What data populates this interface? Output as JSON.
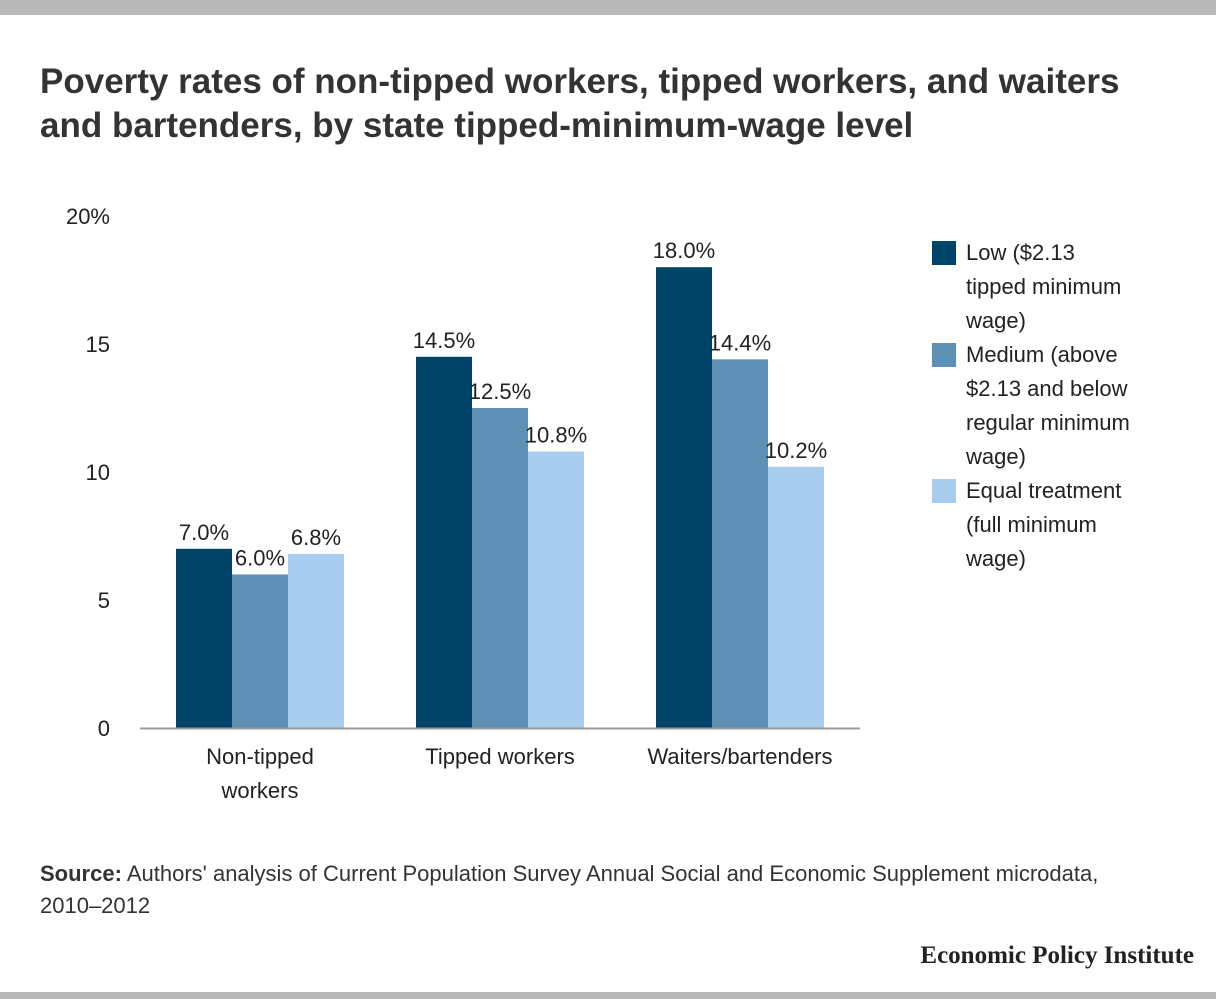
{
  "title": "Poverty rates of non-tipped workers, tipped workers, and waiters and bartenders, by state tipped-minimum-wage level",
  "source_label": "Source:",
  "source_text": "Authors' analysis of Current Population Survey Annual Social and Economic Supplement microdata, 2010–2012",
  "brand": "Economic Policy Institute",
  "colors": {
    "low": "#00446a",
    "medium": "#5e8fb4",
    "equal": "#a9cdee",
    "axis": "#999999"
  },
  "chart_data": {
    "type": "bar",
    "title": "Poverty rates of non-tipped workers, tipped workers, and waiters and bartenders, by state tipped-minimum-wage level",
    "categories": [
      "Non-tipped workers",
      "Tipped workers",
      "Waiters/bartenders"
    ],
    "series": [
      {
        "name": "Low ($2.13 tipped minimum wage)",
        "values": [
          7.0,
          14.5,
          18.0
        ],
        "labels": [
          "7.0%",
          "14.5%",
          "18.0%"
        ]
      },
      {
        "name": "Medium (above $2.13 and below regular minimum wage)",
        "values": [
          6.0,
          12.5,
          14.4
        ],
        "labels": [
          "6.0%",
          "12.5%",
          "14.4%"
        ]
      },
      {
        "name": "Equal treatment (full minimum wage)",
        "values": [
          6.8,
          10.8,
          10.2
        ],
        "labels": [
          "6.8%",
          "10.8%",
          "10.2%"
        ]
      }
    ],
    "yticks": [
      "0",
      "5",
      "10",
      "15",
      "20%"
    ],
    "ylim": [
      0,
      20
    ],
    "grid": false,
    "legend_position": "right"
  }
}
